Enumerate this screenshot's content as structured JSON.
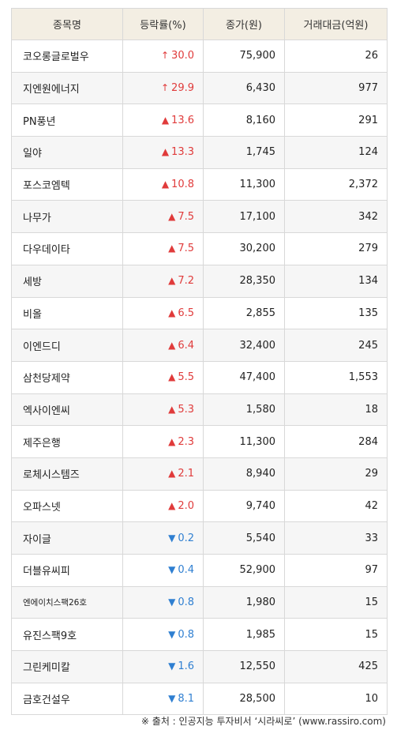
{
  "table": {
    "headers": [
      "종목명",
      "등락률(%)",
      "종가(원)",
      "거래대금(억원)"
    ],
    "rows": [
      {
        "name": "코오롱글로벌우",
        "dir": "limit-up",
        "symbol": "↑",
        "rate": "30.0",
        "close": "75,900",
        "volume": "26"
      },
      {
        "name": "지엔원에너지",
        "dir": "limit-up",
        "symbol": "↑",
        "rate": "29.9",
        "close": "6,430",
        "volume": "977"
      },
      {
        "name": "PN풍년",
        "dir": "up",
        "symbol": "▲",
        "rate": "13.6",
        "close": "8,160",
        "volume": "291"
      },
      {
        "name": "일야",
        "dir": "up",
        "symbol": "▲",
        "rate": "13.3",
        "close": "1,745",
        "volume": "124"
      },
      {
        "name": "포스코엠텍",
        "dir": "up",
        "symbol": "▲",
        "rate": "10.8",
        "close": "11,300",
        "volume": "2,372"
      },
      {
        "name": "나무가",
        "dir": "up",
        "symbol": "▲",
        "rate": "7.5",
        "close": "17,100",
        "volume": "342"
      },
      {
        "name": "다우데이타",
        "dir": "up",
        "symbol": "▲",
        "rate": "7.5",
        "close": "30,200",
        "volume": "279"
      },
      {
        "name": "세방",
        "dir": "up",
        "symbol": "▲",
        "rate": "7.2",
        "close": "28,350",
        "volume": "134"
      },
      {
        "name": "비올",
        "dir": "up",
        "symbol": "▲",
        "rate": "6.5",
        "close": "2,855",
        "volume": "135"
      },
      {
        "name": "이엔드디",
        "dir": "up",
        "symbol": "▲",
        "rate": "6.4",
        "close": "32,400",
        "volume": "245"
      },
      {
        "name": "삼천당제약",
        "dir": "up",
        "symbol": "▲",
        "rate": "5.5",
        "close": "47,400",
        "volume": "1,553"
      },
      {
        "name": "엑사이엔씨",
        "dir": "up",
        "symbol": "▲",
        "rate": "5.3",
        "close": "1,580",
        "volume": "18"
      },
      {
        "name": "제주은행",
        "dir": "up",
        "symbol": "▲",
        "rate": "2.3",
        "close": "11,300",
        "volume": "284"
      },
      {
        "name": "로체시스템즈",
        "dir": "up",
        "symbol": "▲",
        "rate": "2.1",
        "close": "8,940",
        "volume": "29"
      },
      {
        "name": "오파스넷",
        "dir": "up",
        "symbol": "▲",
        "rate": "2.0",
        "close": "9,740",
        "volume": "42"
      },
      {
        "name": "자이글",
        "dir": "down",
        "symbol": "▼",
        "rate": "0.2",
        "close": "5,540",
        "volume": "33"
      },
      {
        "name": "더블유씨피",
        "dir": "down",
        "symbol": "▼",
        "rate": "0.4",
        "close": "52,900",
        "volume": "97"
      },
      {
        "name": "엔에이치스팩26호",
        "dir": "down",
        "symbol": "▼",
        "rate": "0.8",
        "close": "1,980",
        "volume": "15"
      },
      {
        "name": "유진스팩9호",
        "dir": "down",
        "symbol": "▼",
        "rate": "0.8",
        "close": "1,985",
        "volume": "15"
      },
      {
        "name": "그린케미칼",
        "dir": "down",
        "symbol": "▼",
        "rate": "1.6",
        "close": "12,550",
        "volume": "425"
      },
      {
        "name": "금호건설우",
        "dir": "down",
        "symbol": "▼",
        "rate": "8.1",
        "close": "28,500",
        "volume": "10"
      }
    ]
  },
  "source": "※ 출처 : 인공지능 투자비서 ‘시라씨로’ (www.rassiro.com)",
  "colors": {
    "up": "#e03b3b",
    "down": "#2f7fd1",
    "header_bg": "#f3eee3"
  }
}
